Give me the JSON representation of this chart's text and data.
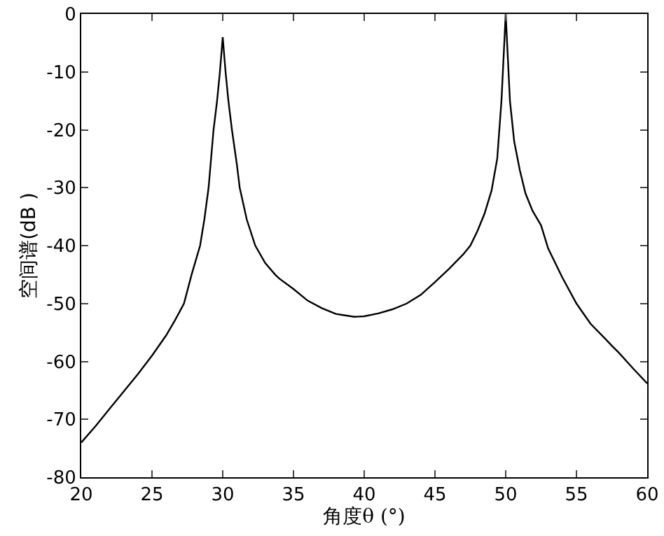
{
  "chart_data": {
    "type": "line",
    "xlabel": "角度θ (°)",
    "ylabel": "空间谱(dB )",
    "color": "#000000",
    "x": [
      20,
      21,
      22,
      23,
      24,
      25,
      26,
      26.6,
      27,
      27.26,
      27.8,
      28.4,
      28.7,
      29,
      29.35,
      29.6,
      29.8,
      30,
      30.2,
      30.4,
      30.65,
      31,
      31.2,
      31.7,
      32.3,
      33,
      33.7,
      34,
      35,
      36,
      37,
      38,
      38.5,
      39.3,
      40,
      41,
      42,
      43,
      44,
      45,
      46,
      47,
      47.5,
      48,
      48.5,
      49,
      49.4,
      49.7,
      50,
      50.3,
      50.6,
      51,
      51.4,
      51.9,
      52.5,
      53,
      54,
      55,
      56,
      57,
      57.5,
      58,
      59,
      60
    ],
    "values": [
      -74,
      -71.2,
      -68.2,
      -65.2,
      -62.2,
      -59,
      -55.5,
      -53,
      -51.2,
      -50,
      -45,
      -40,
      -35.5,
      -30,
      -20,
      -15,
      -10,
      -4,
      -10,
      -15,
      -20,
      -26,
      -30,
      -35.5,
      -40,
      -43,
      -45,
      -45.7,
      -47.5,
      -49.5,
      -50.8,
      -51.8,
      -52,
      -52.3,
      -52.2,
      -51.7,
      -51,
      -50,
      -48.5,
      -46.3,
      -44,
      -41.5,
      -40,
      -37.5,
      -34.5,
      -30.5,
      -25,
      -15,
      0,
      -15,
      -22,
      -27,
      -31,
      -34,
      -36.5,
      -40.5,
      -45.5,
      -50,
      -53.5,
      -56,
      -57.3,
      -58.5,
      -61.2,
      -63.8
    ],
    "xlim": [
      20,
      60
    ],
    "xticks": [
      20,
      25,
      30,
      35,
      40,
      45,
      50,
      55,
      60
    ],
    "ylim": [
      -80,
      0
    ],
    "yticks": [
      -80,
      -70,
      -60,
      -50,
      -40,
      -30,
      -20,
      -10,
      0
    ],
    "grid": false,
    "marker": "none",
    "line_style": "solid"
  }
}
